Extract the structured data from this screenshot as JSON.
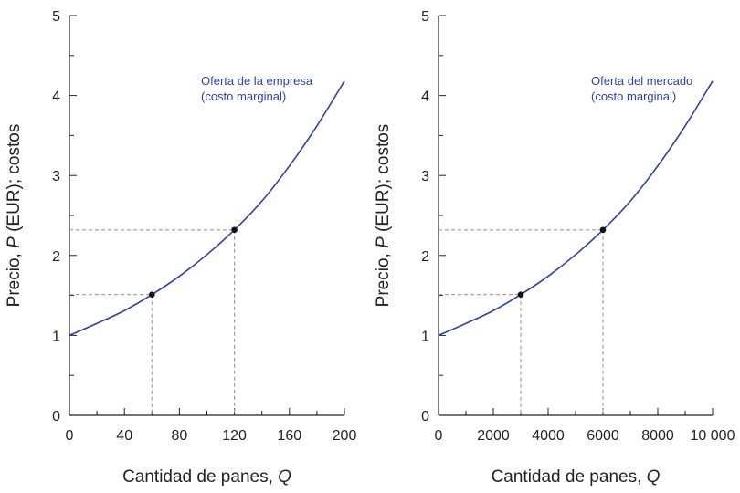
{
  "chart_data": [
    {
      "type": "line",
      "title": "",
      "xlabel": "Cantidad de panes, ",
      "xlabel_var": "Q",
      "ylabel": "Precio, ",
      "ylabel_var": "P",
      "ylabel_rest": " (EUR); costos",
      "xlim": [
        0,
        200
      ],
      "ylim": [
        0,
        5
      ],
      "xticks": [
        "0",
        "40",
        "80",
        "120",
        "160",
        "200"
      ],
      "xtick_values": [
        0,
        40,
        80,
        120,
        160,
        200
      ],
      "yticks": [
        "0",
        "1",
        "2",
        "3",
        "4",
        "5"
      ],
      "ytick_values": [
        0,
        1,
        2,
        3,
        4,
        5
      ],
      "grid": false,
      "curve": {
        "name": "Oferta de la empresa (costo marginal)",
        "x": [
          0,
          20,
          40,
          60,
          80,
          100,
          120,
          140,
          160,
          180,
          200
        ],
        "y": [
          1.0,
          1.15,
          1.31,
          1.51,
          1.74,
          2.01,
          2.32,
          2.68,
          3.12,
          3.62,
          4.18
        ]
      },
      "annotation": [
        "Oferta de la empresa",
        "(costo marginal)"
      ],
      "points": [
        {
          "x": 60,
          "y": 1.51
        },
        {
          "x": 120,
          "y": 2.32
        }
      ],
      "line_color": "#2f3ea8",
      "annotation_color": "#2f3ea8"
    },
    {
      "type": "line",
      "title": "",
      "xlabel": "Cantidad de panes, ",
      "xlabel_var": "Q",
      "ylabel": "Precio, ",
      "ylabel_var": "P",
      "ylabel_rest": " (EUR); costos",
      "xlim": [
        0,
        10000
      ],
      "ylim": [
        0,
        5
      ],
      "xticks": [
        "0",
        "2000",
        "4000",
        "6000",
        "8000",
        "10 000"
      ],
      "xtick_values": [
        0,
        2000,
        4000,
        6000,
        8000,
        10000
      ],
      "yticks": [
        "0",
        "1",
        "2",
        "3",
        "4",
        "5"
      ],
      "ytick_values": [
        0,
        1,
        2,
        3,
        4,
        5
      ],
      "grid": false,
      "curve": {
        "name": "Oferta del mercado (costo marginal)",
        "x": [
          0,
          1000,
          2000,
          3000,
          4000,
          5000,
          6000,
          7000,
          8000,
          9000,
          10000
        ],
        "y": [
          1.0,
          1.15,
          1.31,
          1.51,
          1.74,
          2.01,
          2.32,
          2.68,
          3.12,
          3.62,
          4.18
        ]
      },
      "annotation": [
        "Oferta del mercado",
        "(costo marginal)"
      ],
      "points": [
        {
          "x": 3000,
          "y": 1.51
        },
        {
          "x": 6000,
          "y": 2.32
        }
      ],
      "line_color": "#2f3ea8",
      "annotation_color": "#2f3ea8"
    }
  ]
}
